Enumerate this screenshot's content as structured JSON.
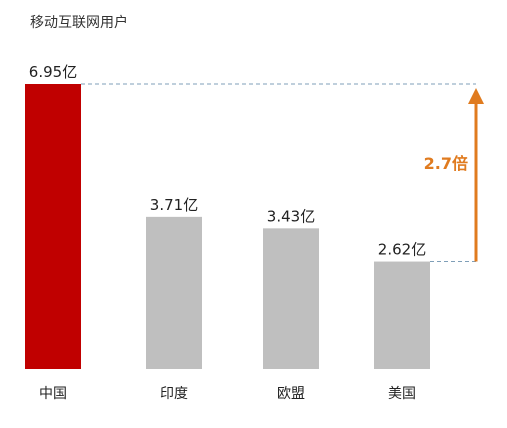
{
  "chart_data": {
    "type": "bar",
    "title": "移动互联网用户",
    "categories": [
      "中国",
      "印度",
      "欧盟",
      "美国"
    ],
    "values": [
      6.95,
      3.71,
      3.43,
      2.62
    ],
    "value_labels": [
      "6.95亿",
      "3.71亿",
      "3.43亿",
      "2.62亿"
    ],
    "colors": [
      "#c00000",
      "#bfbfbf",
      "#bfbfbf",
      "#bfbfbf"
    ],
    "ylim": [
      0,
      6.95
    ],
    "grid": false,
    "legend": "none",
    "annotation": {
      "text": "2.7倍",
      "from_value": 2.62,
      "to_value": 6.95,
      "color": "#e07b1f",
      "line_color": "#7f9fb8"
    }
  }
}
